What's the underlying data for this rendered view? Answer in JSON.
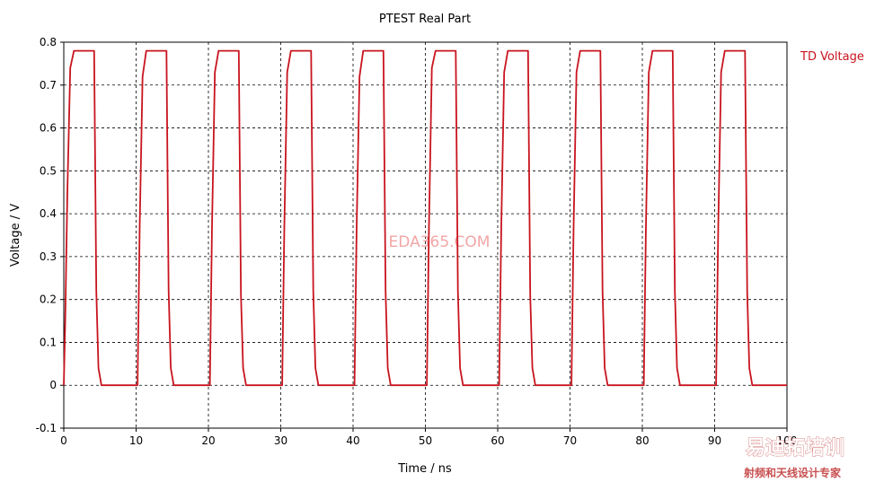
{
  "chart_data": {
    "type": "line",
    "title": "PTEST  Real Part",
    "xlabel": "Time / ns",
    "ylabel": "Voltage / V",
    "xlim": [
      0,
      100
    ],
    "ylim": [
      -0.1,
      0.8
    ],
    "x_ticks": [
      0,
      10,
      20,
      30,
      40,
      50,
      60,
      70,
      80,
      90,
      100
    ],
    "y_ticks": [
      -0.1,
      0,
      0.1,
      0.2,
      0.3,
      0.4,
      0.5,
      0.6,
      0.7,
      0.8
    ],
    "x_tick_labels": [
      "0",
      "10",
      "20",
      "30",
      "40",
      "50",
      "60",
      "70",
      "80",
      "90",
      "100"
    ],
    "y_tick_labels": [
      "-0.1",
      "0",
      "0.1",
      "0.2",
      "0.3",
      "0.4",
      "0.5",
      "0.6",
      "0.7",
      "0.8"
    ],
    "grid": true,
    "legend_position": "right",
    "series": [
      {
        "name": "TD Voltage",
        "color": "#c8141e",
        "x": [
          0,
          0.2,
          0.5,
          0.9,
          1.4,
          4.2,
          4.5,
          4.8,
          5.2,
          6.0,
          10.0,
          10.2,
          10.5,
          10.9,
          11.4,
          14.2,
          14.5,
          14.8,
          15.2,
          16.0,
          20.0,
          20.2,
          20.5,
          20.9,
          21.4,
          24.2,
          24.5,
          24.8,
          25.2,
          26.0,
          30.0,
          30.2,
          30.5,
          30.9,
          31.4,
          34.2,
          34.5,
          34.8,
          35.2,
          36.0,
          40.0,
          40.2,
          40.5,
          40.9,
          41.4,
          44.2,
          44.5,
          44.8,
          45.2,
          46.0,
          50.0,
          50.2,
          50.5,
          50.9,
          51.4,
          54.2,
          54.5,
          54.8,
          55.2,
          56.0,
          60.0,
          60.2,
          60.5,
          60.9,
          61.4,
          64.2,
          64.5,
          64.8,
          65.2,
          66.0,
          70.0,
          70.2,
          70.5,
          70.9,
          71.4,
          74.2,
          74.5,
          74.8,
          75.2,
          76.0,
          80.0,
          80.2,
          80.5,
          80.9,
          81.4,
          84.2,
          84.5,
          84.8,
          85.2,
          86.0,
          90.0,
          90.2,
          90.5,
          90.9,
          91.4,
          94.2,
          94.5,
          94.8,
          95.2,
          96.0,
          100.0
        ],
        "values": [
          0.0,
          0.15,
          0.45,
          0.74,
          0.78,
          0.78,
          0.22,
          0.04,
          0.0,
          0.0,
          0.0,
          0.0,
          0.37,
          0.72,
          0.78,
          0.78,
          0.22,
          0.04,
          0.0,
          0.0,
          0.0,
          0.0,
          0.37,
          0.73,
          0.78,
          0.78,
          0.21,
          0.04,
          0.0,
          0.0,
          0.0,
          0.0,
          0.37,
          0.73,
          0.78,
          0.78,
          0.22,
          0.04,
          0.0,
          0.0,
          0.0,
          0.0,
          0.37,
          0.72,
          0.78,
          0.78,
          0.22,
          0.04,
          0.0,
          0.0,
          0.0,
          0.0,
          0.37,
          0.74,
          0.78,
          0.78,
          0.22,
          0.04,
          0.0,
          0.0,
          0.0,
          0.0,
          0.37,
          0.73,
          0.78,
          0.78,
          0.21,
          0.04,
          0.0,
          0.0,
          0.0,
          0.0,
          0.37,
          0.73,
          0.78,
          0.78,
          0.22,
          0.04,
          0.0,
          0.0,
          0.0,
          0.0,
          0.37,
          0.73,
          0.78,
          0.78,
          0.22,
          0.04,
          0.0,
          0.0,
          0.0,
          0.0,
          0.37,
          0.73,
          0.78,
          0.78,
          0.22,
          0.04,
          0.0,
          0.0,
          0.0
        ]
      }
    ]
  },
  "watermark": "EDA365.COM",
  "logo": {
    "main_text": "易迪拓培训",
    "sub_text": "射频和天线设计专家"
  }
}
